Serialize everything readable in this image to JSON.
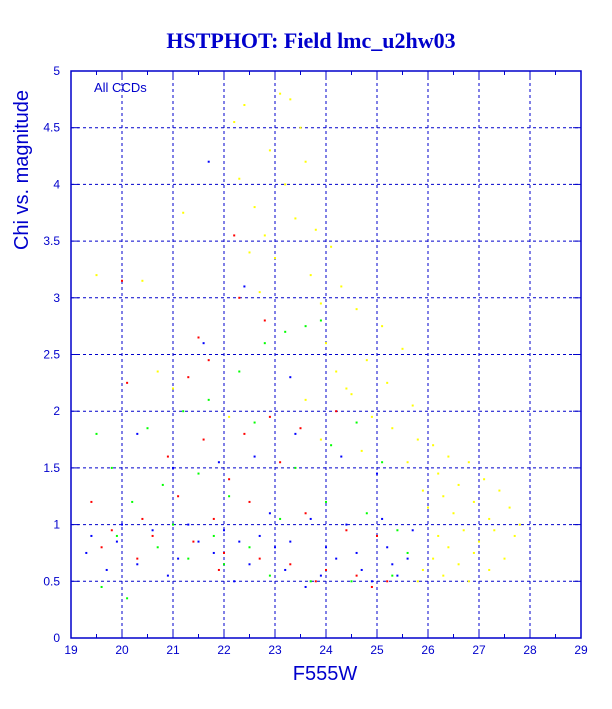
{
  "chart_data": {
    "type": "scatter",
    "title": "HSTPHOT: Field lmc_u2hw03",
    "xlabel": "F555W",
    "ylabel": "Chi vs. magnitude",
    "annotation": "All CCDs",
    "xlim": [
      19,
      29
    ],
    "ylim": [
      0,
      5
    ],
    "xticks": [
      19,
      20,
      21,
      22,
      23,
      24,
      25,
      26,
      27,
      28,
      29
    ],
    "yticks": [
      0,
      0.5,
      1,
      1.5,
      2,
      2.5,
      3,
      3.5,
      4,
      4.5,
      5
    ],
    "grid": true,
    "series": [
      {
        "color": "#ffff00",
        "points": [
          [
            23.1,
            4.8
          ],
          [
            23.3,
            4.75
          ],
          [
            22.4,
            4.7
          ],
          [
            22.2,
            4.55
          ],
          [
            23.5,
            4.5
          ],
          [
            22.9,
            4.3
          ],
          [
            23.6,
            4.2
          ],
          [
            22.3,
            4.05
          ],
          [
            23.2,
            4.0
          ],
          [
            21.2,
            3.75
          ],
          [
            22.6,
            3.8
          ],
          [
            23.4,
            3.7
          ],
          [
            23.8,
            3.6
          ],
          [
            22.8,
            3.55
          ],
          [
            24.1,
            3.45
          ],
          [
            22.5,
            3.4
          ],
          [
            23.0,
            3.35
          ],
          [
            23.7,
            3.2
          ],
          [
            24.3,
            3.1
          ],
          [
            22.7,
            3.05
          ],
          [
            23.9,
            2.95
          ],
          [
            24.6,
            2.9
          ],
          [
            25.1,
            2.75
          ],
          [
            25.5,
            2.55
          ],
          [
            24.8,
            2.45
          ],
          [
            24.2,
            2.35
          ],
          [
            25.2,
            2.25
          ],
          [
            24.5,
            2.15
          ],
          [
            25.7,
            2.05
          ],
          [
            23.6,
            2.1
          ],
          [
            24.9,
            1.95
          ],
          [
            25.3,
            1.85
          ],
          [
            25.8,
            1.75
          ],
          [
            26.1,
            1.7
          ],
          [
            26.4,
            1.6
          ],
          [
            25.6,
            1.55
          ],
          [
            26.8,
            1.55
          ],
          [
            26.2,
            1.45
          ],
          [
            27.1,
            1.4
          ],
          [
            26.6,
            1.35
          ],
          [
            25.9,
            1.3
          ],
          [
            27.4,
            1.3
          ],
          [
            26.3,
            1.25
          ],
          [
            26.9,
            1.2
          ],
          [
            27.6,
            1.15
          ],
          [
            26.0,
            1.15
          ],
          [
            26.5,
            1.1
          ],
          [
            27.2,
            1.05
          ],
          [
            27.8,
            1.0
          ],
          [
            26.7,
            0.95
          ],
          [
            27.3,
            0.95
          ],
          [
            26.2,
            0.9
          ],
          [
            27.0,
            0.85
          ],
          [
            27.7,
            0.9
          ],
          [
            26.4,
            0.8
          ],
          [
            26.9,
            0.75
          ],
          [
            27.5,
            0.7
          ],
          [
            26.1,
            0.7
          ],
          [
            26.6,
            0.65
          ],
          [
            25.9,
            0.6
          ],
          [
            27.2,
            0.6
          ],
          [
            26.3,
            0.55
          ],
          [
            25.8,
            0.5
          ],
          [
            26.8,
            0.5
          ],
          [
            21.0,
            2.2
          ],
          [
            20.7,
            2.35
          ],
          [
            24.0,
            2.6
          ],
          [
            24.4,
            2.2
          ],
          [
            23.9,
            1.75
          ],
          [
            24.7,
            1.65
          ],
          [
            22.1,
            1.95
          ],
          [
            20.4,
            3.15
          ],
          [
            19.5,
            3.2
          ]
        ]
      },
      {
        "color": "#ff0000",
        "points": [
          [
            20.0,
            3.15
          ],
          [
            22.2,
            3.55
          ],
          [
            22.3,
            3.0
          ],
          [
            21.5,
            2.65
          ],
          [
            21.7,
            2.45
          ],
          [
            22.8,
            2.8
          ],
          [
            21.3,
            2.3
          ],
          [
            20.1,
            2.25
          ],
          [
            19.4,
            1.2
          ],
          [
            20.9,
            1.6
          ],
          [
            21.6,
            1.75
          ],
          [
            22.4,
            1.8
          ],
          [
            22.9,
            1.95
          ],
          [
            23.5,
            1.85
          ],
          [
            24.2,
            2.0
          ],
          [
            22.1,
            1.4
          ],
          [
            23.1,
            1.55
          ],
          [
            21.1,
            1.25
          ],
          [
            20.4,
            1.05
          ],
          [
            19.8,
            0.95
          ],
          [
            20.6,
            0.9
          ],
          [
            21.4,
            0.85
          ],
          [
            22.0,
            0.75
          ],
          [
            22.7,
            0.7
          ],
          [
            23.3,
            0.65
          ],
          [
            24.0,
            0.6
          ],
          [
            24.6,
            0.55
          ],
          [
            25.2,
            0.5
          ],
          [
            21.8,
            1.05
          ],
          [
            20.3,
            0.7
          ],
          [
            19.6,
            0.8
          ],
          [
            21.9,
            0.6
          ],
          [
            23.8,
            0.5
          ],
          [
            24.9,
            0.45
          ],
          [
            22.5,
            1.2
          ],
          [
            23.6,
            1.1
          ],
          [
            24.4,
            0.95
          ],
          [
            25.0,
            0.9
          ]
        ]
      },
      {
        "color": "#00ff00",
        "points": [
          [
            19.5,
            1.8
          ],
          [
            19.8,
            1.5
          ],
          [
            20.5,
            1.85
          ],
          [
            21.2,
            2.0
          ],
          [
            21.7,
            2.1
          ],
          [
            22.3,
            2.35
          ],
          [
            22.8,
            2.6
          ],
          [
            23.2,
            2.7
          ],
          [
            23.6,
            2.75
          ],
          [
            23.9,
            2.8
          ],
          [
            22.6,
            1.9
          ],
          [
            23.4,
            1.5
          ],
          [
            24.1,
            1.7
          ],
          [
            24.6,
            1.9
          ],
          [
            25.1,
            1.55
          ],
          [
            20.2,
            1.2
          ],
          [
            20.8,
            1.35
          ],
          [
            21.5,
            1.45
          ],
          [
            22.1,
            1.25
          ],
          [
            19.9,
            0.9
          ],
          [
            20.7,
            0.8
          ],
          [
            21.3,
            0.7
          ],
          [
            22.0,
            0.65
          ],
          [
            22.9,
            0.55
          ],
          [
            23.7,
            0.5
          ],
          [
            24.5,
            0.5
          ],
          [
            25.3,
            0.55
          ],
          [
            19.6,
            0.45
          ],
          [
            20.1,
            0.35
          ],
          [
            21.0,
            1.0
          ],
          [
            21.8,
            0.9
          ],
          [
            22.5,
            0.8
          ],
          [
            23.1,
            1.05
          ],
          [
            24.0,
            1.2
          ],
          [
            24.8,
            1.1
          ],
          [
            25.4,
            0.95
          ],
          [
            25.6,
            0.75
          ]
        ]
      },
      {
        "color": "#0000ff",
        "points": [
          [
            21.7,
            4.2
          ],
          [
            22.4,
            3.1
          ],
          [
            21.6,
            2.6
          ],
          [
            23.3,
            2.3
          ],
          [
            20.3,
            1.8
          ],
          [
            21.0,
            1.5
          ],
          [
            21.9,
            1.55
          ],
          [
            22.6,
            1.6
          ],
          [
            23.4,
            1.8
          ],
          [
            24.3,
            1.6
          ],
          [
            25.0,
            1.45
          ],
          [
            19.4,
            0.9
          ],
          [
            19.9,
            0.85
          ],
          [
            20.6,
            0.95
          ],
          [
            21.3,
            1.0
          ],
          [
            22.0,
            0.95
          ],
          [
            22.7,
            0.9
          ],
          [
            23.3,
            0.85
          ],
          [
            24.0,
            0.8
          ],
          [
            24.6,
            0.75
          ],
          [
            25.2,
            0.8
          ],
          [
            25.6,
            0.7
          ],
          [
            20.3,
            0.65
          ],
          [
            21.1,
            0.7
          ],
          [
            21.8,
            0.75
          ],
          [
            22.5,
            0.65
          ],
          [
            23.2,
            0.6
          ],
          [
            23.9,
            0.55
          ],
          [
            24.7,
            0.6
          ],
          [
            25.4,
            0.55
          ],
          [
            19.7,
            0.6
          ],
          [
            20.9,
            0.55
          ],
          [
            22.2,
            0.5
          ],
          [
            23.6,
            0.45
          ],
          [
            24.9,
            0.5
          ],
          [
            19.3,
            0.75
          ],
          [
            20.0,
            1.0
          ],
          [
            22.9,
            1.1
          ],
          [
            23.7,
            1.05
          ],
          [
            24.4,
            1.0
          ],
          [
            25.1,
            1.05
          ],
          [
            25.7,
            0.95
          ],
          [
            21.5,
            0.85
          ],
          [
            22.3,
            0.85
          ],
          [
            23.0,
            0.8
          ],
          [
            24.2,
            0.7
          ],
          [
            25.3,
            0.65
          ]
        ]
      }
    ]
  }
}
